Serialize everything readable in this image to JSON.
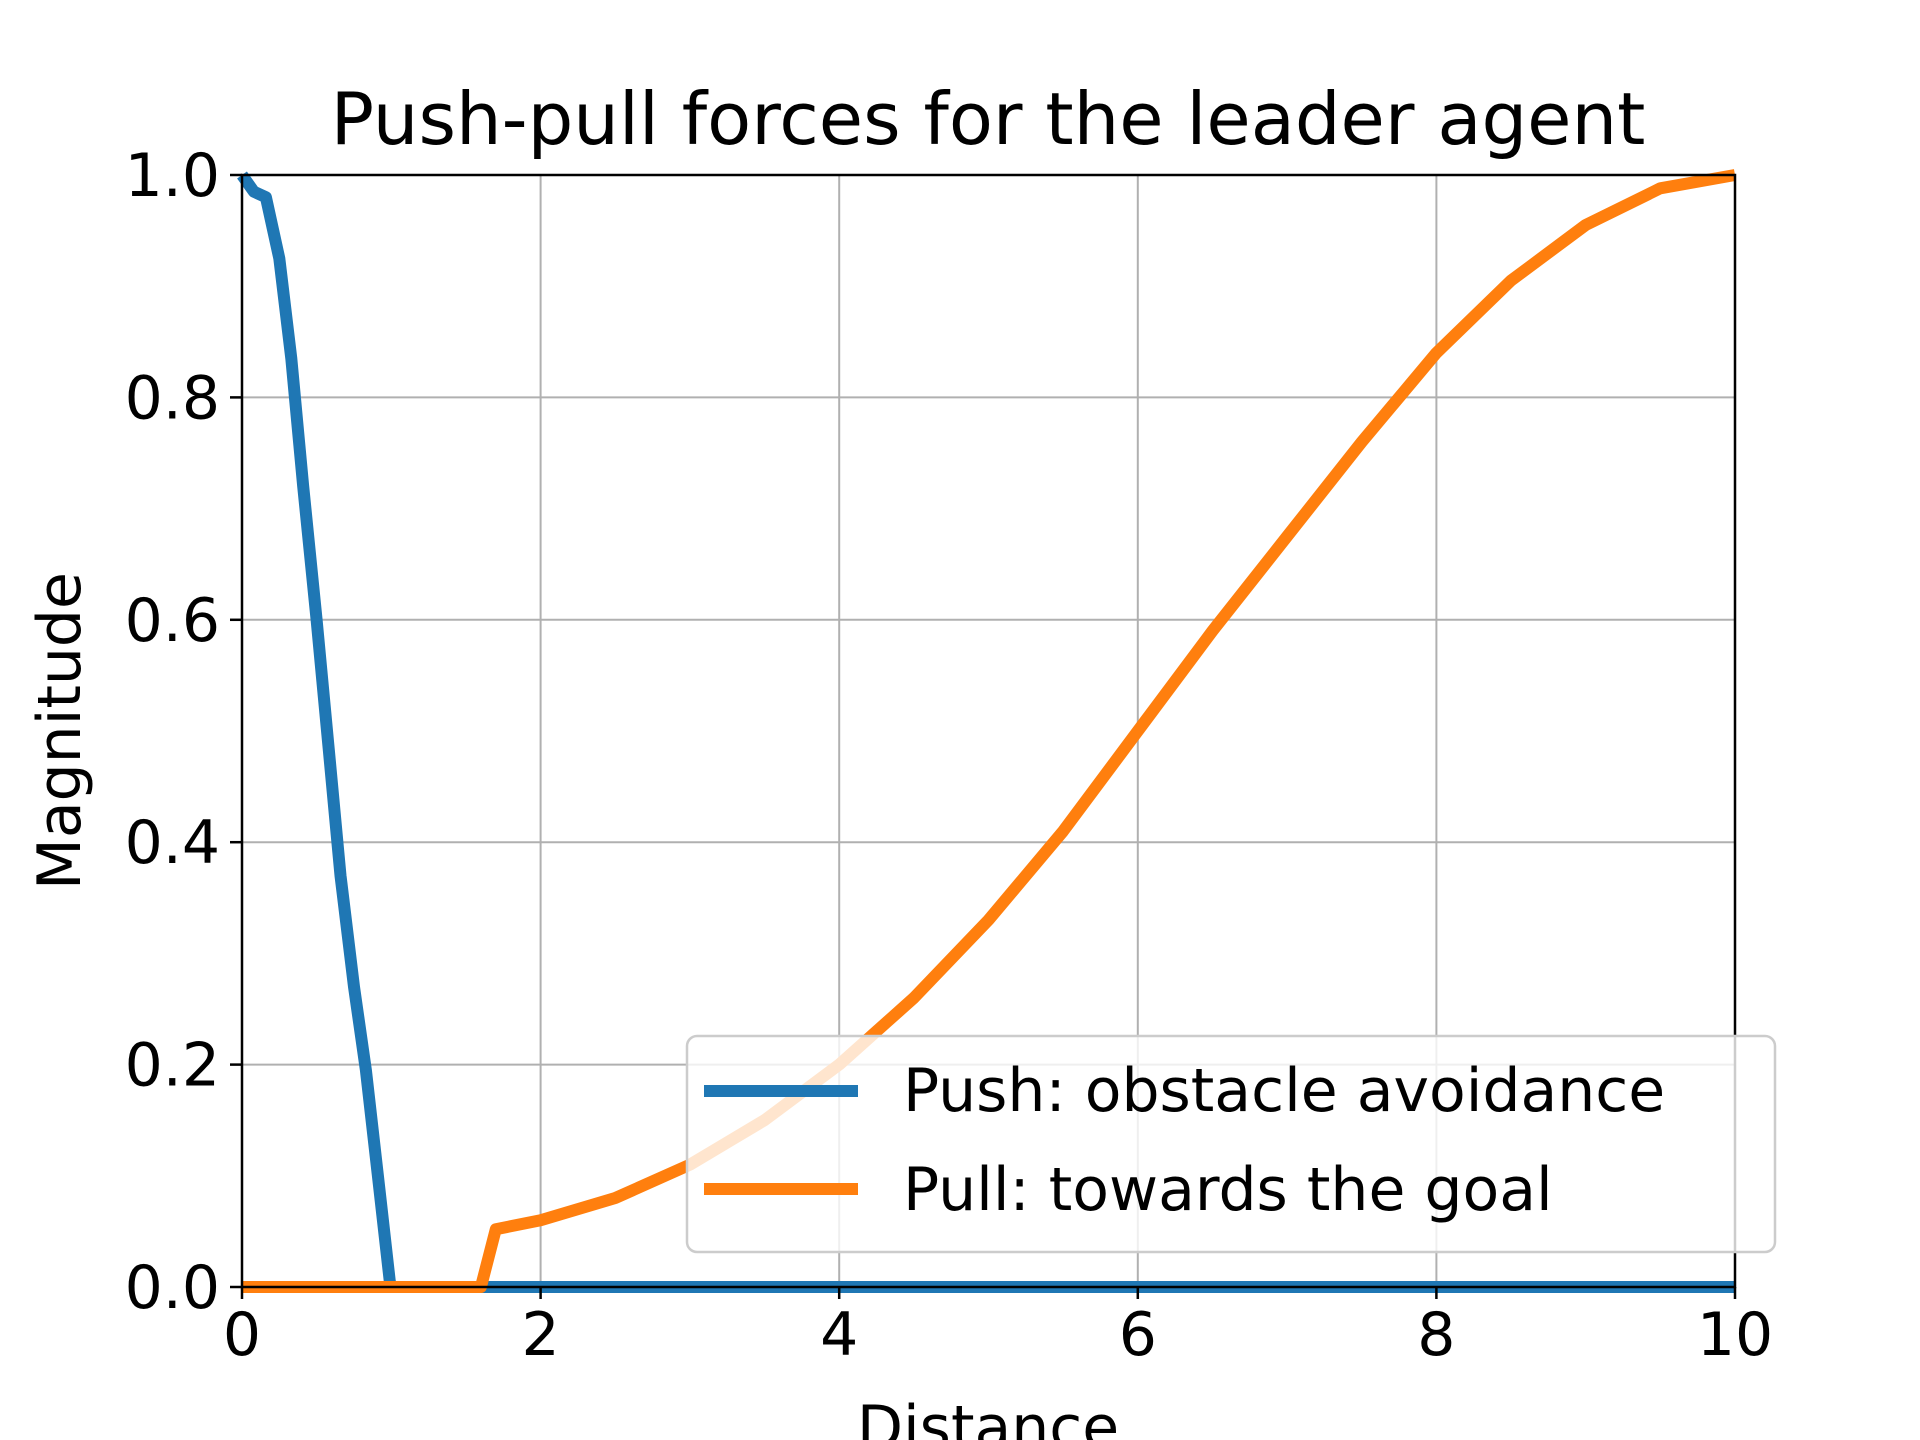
{
  "chart_data": {
    "type": "line",
    "title": "Push-pull forces for the leader agent",
    "xlabel": "Distance",
    "ylabel": "Magnitude",
    "xlim": [
      0,
      10
    ],
    "ylim": [
      0,
      1
    ],
    "xticks": [
      "0",
      "2",
      "4",
      "6",
      "8",
      "10"
    ],
    "yticks": [
      "0.0",
      "0.2",
      "0.4",
      "0.6",
      "0.8",
      "1.0"
    ],
    "grid": true,
    "legend_position": "lower-right",
    "series": [
      {
        "name": "Push: obstacle avoidance",
        "color": "#1f77b4",
        "x": [
          0,
          0.08,
          0.16,
          0.25,
          0.33,
          0.41,
          0.5,
          0.58,
          0.66,
          0.75,
          0.83,
          0.91,
          0.99,
          1.0,
          10
        ],
        "y": [
          1.0,
          0.985,
          0.98,
          0.925,
          0.835,
          0.72,
          0.6,
          0.485,
          0.37,
          0.27,
          0.195,
          0.1,
          0.005,
          0.0,
          0.0
        ]
      },
      {
        "name": "Pull: towards the goal",
        "color": "#ff7f0e",
        "x": [
          0,
          1.0,
          1.6,
          1.7,
          2.0,
          2.5,
          3.0,
          3.5,
          4.0,
          4.5,
          5.0,
          5.5,
          6.0,
          6.5,
          7.0,
          7.5,
          8.0,
          8.5,
          9.0,
          9.5,
          10.0
        ],
        "y": [
          0.0,
          0.0,
          0.0,
          0.052,
          0.06,
          0.08,
          0.11,
          0.15,
          0.2,
          0.26,
          0.33,
          0.41,
          0.5,
          0.59,
          0.675,
          0.76,
          0.84,
          0.905,
          0.955,
          0.988,
          1.0
        ]
      }
    ]
  }
}
